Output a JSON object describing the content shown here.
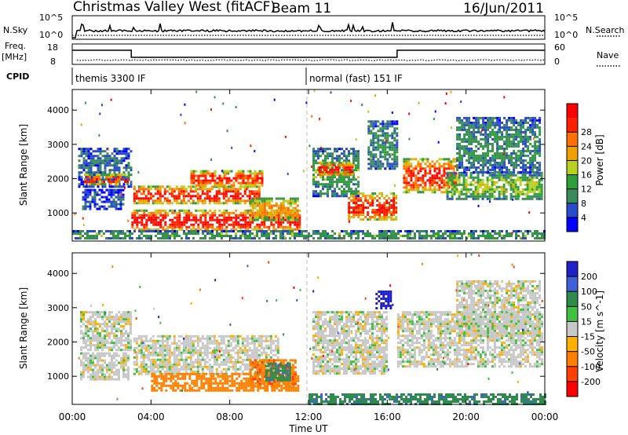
{
  "header": {
    "station": "Christmas Valley West (fitACF)",
    "beam": "Beam 11",
    "date": "16/Jun/2011"
  },
  "strip": {
    "nsky_label": "N.Sky",
    "nsky_top": "10^5",
    "nsky_bottom": "10^0",
    "nsearch_label": "N.Search",
    "nsearch_top": "10^5",
    "nsearch_bottom": "10^0",
    "freq_label": "Freq.",
    "freq_unit": "[MHz]",
    "freq_top": "18",
    "freq_bottom": "8",
    "nave_label": "Nave",
    "nave_top": "60",
    "nave_bottom": "0",
    "cpid_label": "CPID",
    "cpid_1": "themis 3300 IF",
    "cpid_2": "normal (fast) 151 IF"
  },
  "axes": {
    "y_label": "Slant Range [km]",
    "x_label": "Time UT",
    "x_ticks": [
      "00:00",
      "04:00",
      "08:00",
      "12:00",
      "16:00",
      "20:00",
      "00:00"
    ],
    "y_ticks": [
      "1000",
      "2000",
      "3000",
      "4000"
    ]
  },
  "power_scale": {
    "label": "Power [dB]",
    "ticks": [
      "4",
      "8",
      "12",
      "16",
      "20",
      "24",
      "28"
    ],
    "colors": [
      "#0000ff",
      "#2a4cc8",
      "#3a8a5a",
      "#2e9e3a",
      "#b8d020",
      "#f0a000",
      "#ff7000",
      "#ff2000",
      "#ff0000"
    ]
  },
  "velocity_scale": {
    "label": "Velocity [m s^-1]",
    "ticks": [
      "200",
      "100",
      "50",
      "15",
      "-15",
      "-50",
      "-100",
      "-200"
    ],
    "colors": [
      "#2020c8",
      "#4060d8",
      "#2e8a4e",
      "#40c040",
      "#c8c8c8",
      "#ffb000",
      "#ff8000",
      "#ff4000",
      "#ff0000"
    ]
  },
  "chart_data": [
    {
      "type": "heatmap",
      "panel": "power",
      "xlim_hours": [
        0,
        24
      ],
      "ylim_km": [
        180,
        4600
      ],
      "regions": [
        {
          "t": [
            0.3,
            3.0
          ],
          "r": [
            1800,
            2900
          ],
          "level": 0.22
        },
        {
          "t": [
            0.6,
            2.8
          ],
          "r": [
            1850,
            2150
          ],
          "level": 0.8
        },
        {
          "t": [
            0.5,
            2.6
          ],
          "r": [
            1100,
            1700
          ],
          "level": 0.18
        },
        {
          "t": [
            3.1,
            9.5
          ],
          "r": [
            1300,
            1800
          ],
          "level": 0.85
        },
        {
          "t": [
            6.0,
            9.7
          ],
          "r": [
            1800,
            2250
          ],
          "level": 0.85
        },
        {
          "t": [
            3.0,
            11.5
          ],
          "r": [
            500,
            1100
          ],
          "level": 0.9
        },
        {
          "t": [
            9.0,
            11.5
          ],
          "r": [
            800,
            1450
          ],
          "level": 0.65
        },
        {
          "t": [
            12.2,
            14.5
          ],
          "r": [
            1500,
            2900
          ],
          "level": 0.35
        },
        {
          "t": [
            12.5,
            14.2
          ],
          "r": [
            2100,
            2500
          ],
          "level": 0.85
        },
        {
          "t": [
            14.0,
            16.5
          ],
          "r": [
            800,
            1600
          ],
          "level": 0.85
        },
        {
          "t": [
            15.0,
            16.5
          ],
          "r": [
            2300,
            3700
          ],
          "level": 0.3
        },
        {
          "t": [
            16.8,
            19.5
          ],
          "r": [
            1600,
            2600
          ],
          "level": 0.85
        },
        {
          "t": [
            19.0,
            23.8
          ],
          "r": [
            1400,
            2200
          ],
          "level": 0.45
        },
        {
          "t": [
            19.5,
            23.8
          ],
          "r": [
            2200,
            3800
          ],
          "level": 0.3
        },
        {
          "t": [
            0.0,
            24.0
          ],
          "r": [
            250,
            500
          ],
          "level": 0.35
        }
      ]
    },
    {
      "type": "heatmap",
      "panel": "velocity",
      "xlim_hours": [
        0,
        24
      ],
      "ylim_km": [
        180,
        4600
      ],
      "regions": [
        {
          "t": [
            0.4,
            3.0
          ],
          "r": [
            1800,
            2900
          ],
          "v": 0
        },
        {
          "t": [
            0.4,
            2.8
          ],
          "r": [
            900,
            1700
          ],
          "v": 0
        },
        {
          "t": [
            3.1,
            10.5
          ],
          "r": [
            1100,
            2200
          ],
          "v": 0
        },
        {
          "t": [
            4.0,
            11.5
          ],
          "r": [
            600,
            1100
          ],
          "v": -80
        },
        {
          "t": [
            9.0,
            11.3
          ],
          "r": [
            700,
            1500
          ],
          "v": -90
        },
        {
          "t": [
            9.8,
            11.0
          ],
          "r": [
            900,
            1400
          ],
          "v": 60
        },
        {
          "t": [
            12.2,
            16.0
          ],
          "r": [
            1100,
            2900
          ],
          "v": 0
        },
        {
          "t": [
            15.4,
            16.2
          ],
          "r": [
            3000,
            3500
          ],
          "v": 180
        },
        {
          "t": [
            16.5,
            23.8
          ],
          "r": [
            1300,
            2900
          ],
          "v": 0
        },
        {
          "t": [
            19.5,
            23.8
          ],
          "r": [
            2200,
            3800
          ],
          "v": 0
        },
        {
          "t": [
            12.0,
            24.0
          ],
          "r": [
            200,
            500
          ],
          "v": 60
        }
      ]
    }
  ]
}
